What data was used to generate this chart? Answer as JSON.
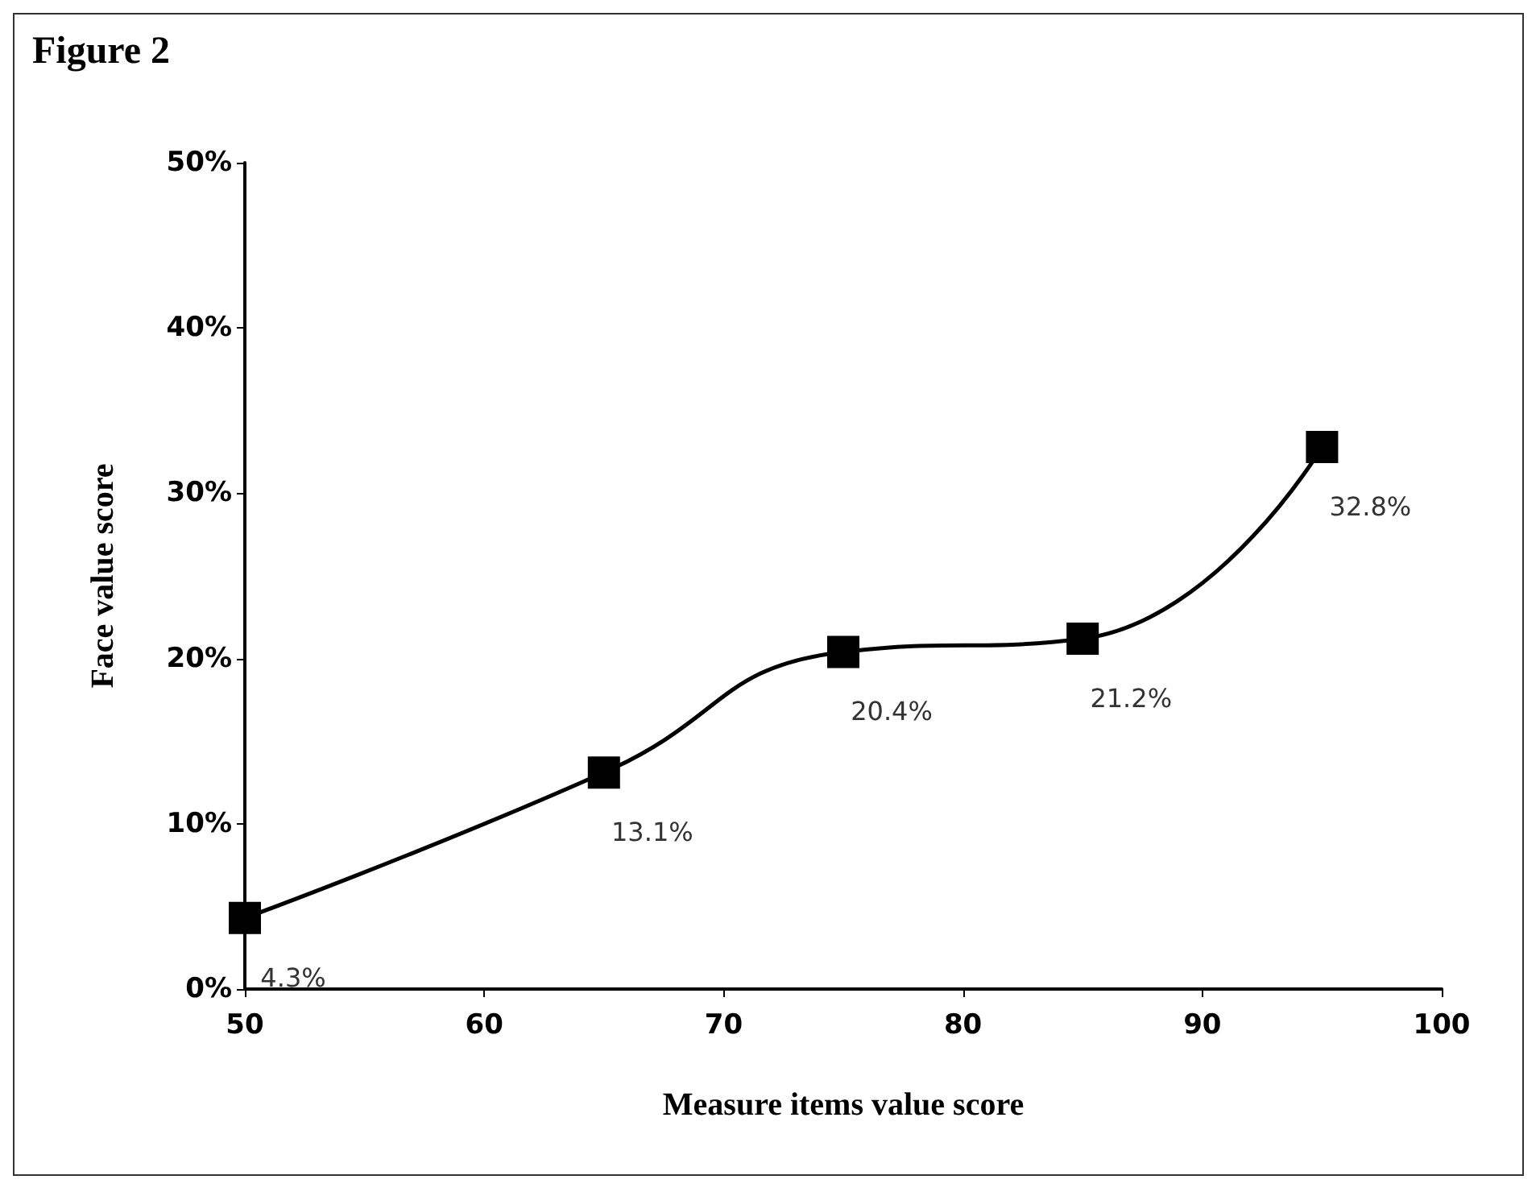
{
  "chart_data": {
    "type": "line",
    "title": "Figure 2",
    "xlabel": "Measure items value score",
    "ylabel": "Face value score",
    "x": [
      50,
      65,
      75,
      85,
      95
    ],
    "series": [
      {
        "color": "#000000",
        "values": [
          4.3,
          13.1,
          20.4,
          21.2,
          32.8
        ],
        "value_labels": [
          "4.3%",
          "13.1%",
          "20.4%",
          "21.2%",
          "32.8%"
        ]
      }
    ],
    "xlim": [
      50,
      100
    ],
    "xticks": [
      50,
      60,
      70,
      80,
      90,
      100
    ],
    "ylim": [
      0,
      50
    ],
    "yticks": [
      {
        "value": 0,
        "label": "0%"
      },
      {
        "value": 10,
        "label": "10%"
      },
      {
        "value": 20,
        "label": "20%"
      },
      {
        "value": 30,
        "label": "30%"
      },
      {
        "value": 40,
        "label": "40%"
      },
      {
        "value": 50,
        "label": "50%"
      }
    ],
    "marker": "square",
    "line_style": "solid",
    "grid": false
  }
}
